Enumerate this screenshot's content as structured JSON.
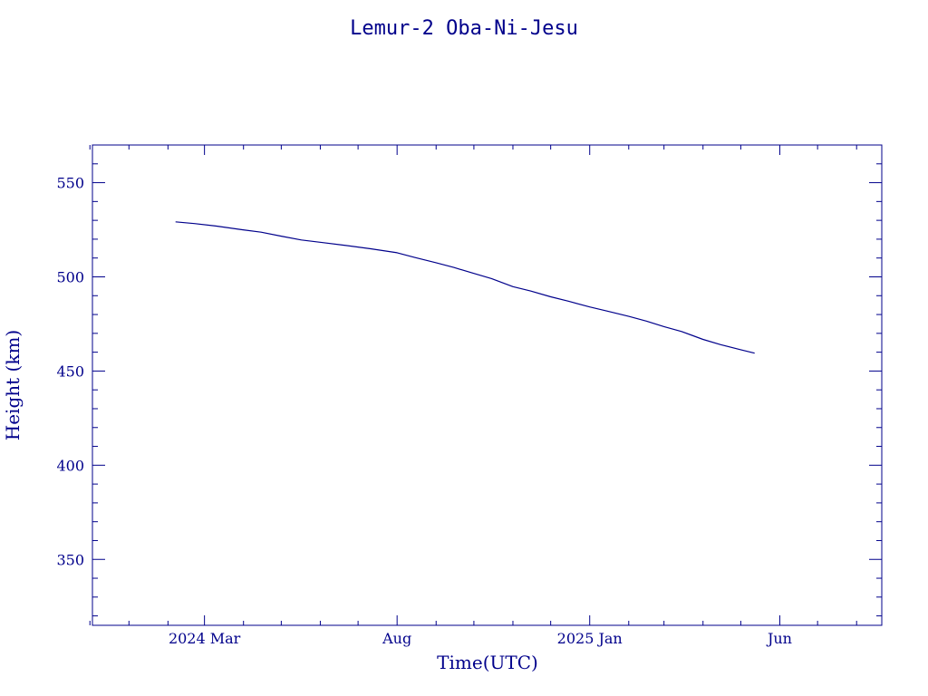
{
  "colors": {
    "axis": "#00008b",
    "line": "#00008b",
    "background": "#ffffff"
  },
  "chart_data": {
    "type": "line",
    "title": "Lemur-2 Oba-Ni-Jesu",
    "xlabel": "Time(UTC)",
    "ylabel": "Height (km)",
    "ylim": [
      315,
      570
    ],
    "xlim": [
      "2023-12-03",
      "2025-08-21"
    ],
    "grid": false,
    "legend": "none",
    "x_ticks": [
      {
        "date": "2024-03-01",
        "label": "2024 Mar"
      },
      {
        "date": "2024-08-01",
        "label": "Aug"
      },
      {
        "date": "2025-01-01",
        "label": "2025 Jan"
      },
      {
        "date": "2025-06-01",
        "label": "Jun"
      }
    ],
    "x_minor_ticks": [
      "2023-12-01",
      "2024-01-01",
      "2024-02-01",
      "2024-04-01",
      "2024-05-01",
      "2024-06-01",
      "2024-07-01",
      "2024-09-01",
      "2024-10-01",
      "2024-11-01",
      "2024-12-01",
      "2025-02-01",
      "2025-03-01",
      "2025-04-01",
      "2025-05-01",
      "2025-07-01",
      "2025-08-01"
    ],
    "y_ticks": [
      350,
      400,
      450,
      500,
      550
    ],
    "y_minor_step": 10,
    "series": [
      {
        "x": [
          "2024-02-07",
          "2024-02-22",
          "2024-03-10",
          "2024-03-31",
          "2024-04-15",
          "2024-05-01",
          "2024-05-17",
          "2024-06-03",
          "2024-06-20",
          "2024-07-11",
          "2024-08-01",
          "2024-08-15",
          "2024-09-01",
          "2024-09-15",
          "2024-10-01",
          "2024-10-15",
          "2024-11-01",
          "2024-11-15",
          "2024-12-01",
          "2024-12-15",
          "2025-01-01",
          "2025-01-15",
          "2025-02-01",
          "2025-02-15",
          "2025-03-01",
          "2025-03-15",
          "2025-04-01",
          "2025-04-15",
          "2025-05-01",
          "2025-05-12"
        ],
        "values": [
          529.2,
          528.3,
          527.0,
          525.0,
          523.7,
          521.6,
          519.6,
          518.2,
          516.8,
          514.9,
          512.8,
          510.3,
          507.5,
          505.0,
          501.8,
          499.1,
          494.8,
          492.5,
          489.4,
          487.1,
          484.0,
          481.8,
          479.0,
          476.5,
          473.6,
          471.0,
          466.8,
          464.0,
          461.3,
          459.5
        ]
      }
    ]
  }
}
